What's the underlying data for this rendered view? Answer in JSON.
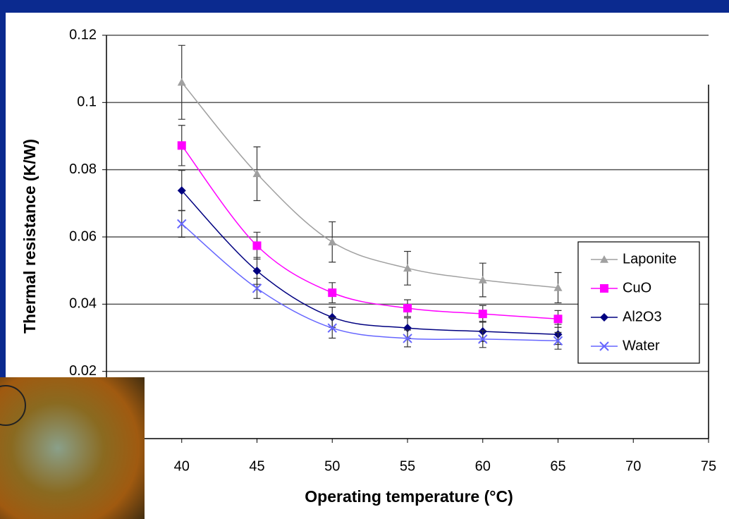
{
  "chart_data": {
    "type": "line",
    "y_label": "Thermal resistance (K/W)",
    "x_label": "Operating temperature (°C)",
    "x": [
      40,
      45,
      50,
      55,
      60,
      65
    ],
    "series": [
      {
        "name": "Laponite",
        "color": "#a0a0a0",
        "marker": "triangle",
        "values": [
          0.106,
          0.0788,
          0.0585,
          0.0507,
          0.0472,
          0.0449
        ],
        "errors": [
          0.011,
          0.008,
          0.006,
          0.005,
          0.005,
          0.0045
        ]
      },
      {
        "name": "CuO",
        "color": "#ff00ff",
        "marker": "square",
        "values": [
          0.0872,
          0.0574,
          0.0434,
          0.0388,
          0.0371,
          0.0356
        ],
        "errors": [
          0.006,
          0.004,
          0.003,
          0.0025,
          0.0025,
          0.0025
        ]
      },
      {
        "name": "Al2O3",
        "color": "#000080",
        "marker": "diamond",
        "values": [
          0.0738,
          0.0499,
          0.0361,
          0.0329,
          0.0319,
          0.031
        ],
        "errors": [
          0.006,
          0.004,
          0.003,
          0.003,
          0.003,
          0.003
        ]
      },
      {
        "name": "Water",
        "color": "#6666ff",
        "marker": "cross",
        "values": [
          0.0639,
          0.0447,
          0.0329,
          0.0298,
          0.0296,
          0.0291
        ],
        "errors": [
          0.004,
          0.003,
          0.003,
          0.0025,
          0.0025,
          0.0025
        ]
      }
    ],
    "xlim": [
      35,
      75
    ],
    "xticks": [
      40,
      45,
      50,
      55,
      60,
      65,
      70,
      75
    ],
    "ylim": [
      0,
      0.12
    ],
    "yticks": [
      0.02,
      0.04,
      0.06,
      0.08,
      0.1,
      0.12
    ],
    "grid": true,
    "legend": "right"
  }
}
